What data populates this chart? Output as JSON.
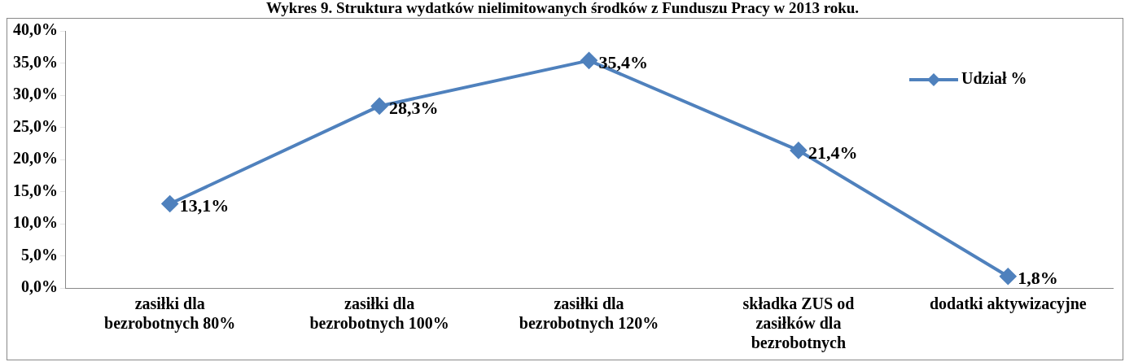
{
  "chart_data": {
    "type": "line",
    "title": "Wykres 9. Struktura wydatków nielimitowanych środków z Funduszu Pracy w 2013 roku.",
    "categories": [
      "zasiłki dla bezrobotnych 80%",
      "zasiłki dla bezrobotnych 100%",
      "zasiłki dla bezrobotnych 120%",
      "składka ZUS od zasiłków dla bezrobotnych",
      "dodatki aktywizacyjne"
    ],
    "series": [
      {
        "name": "Udział %",
        "color": "#4f81bd",
        "values": [
          13.1,
          28.3,
          35.4,
          21.4,
          1.8
        ],
        "value_labels": [
          "13,1%",
          "28,3%",
          "35,4%",
          "21,4%",
          "1,8%"
        ]
      }
    ],
    "ylim": [
      0,
      40
    ],
    "yticks": [
      {
        "value": 0,
        "label": "0,0%"
      },
      {
        "value": 5,
        "label": "5,0%"
      },
      {
        "value": 10,
        "label": "10,0%"
      },
      {
        "value": 15,
        "label": "15,0%"
      },
      {
        "value": 20,
        "label": "20,0%"
      },
      {
        "value": 25,
        "label": "25,0%"
      },
      {
        "value": 30,
        "label": "30,0%"
      },
      {
        "value": 35,
        "label": "35,0%"
      },
      {
        "value": 40,
        "label": "40,0%"
      }
    ],
    "grid": false,
    "legend": "right",
    "marker": "diamond",
    "line_style": "solid"
  }
}
